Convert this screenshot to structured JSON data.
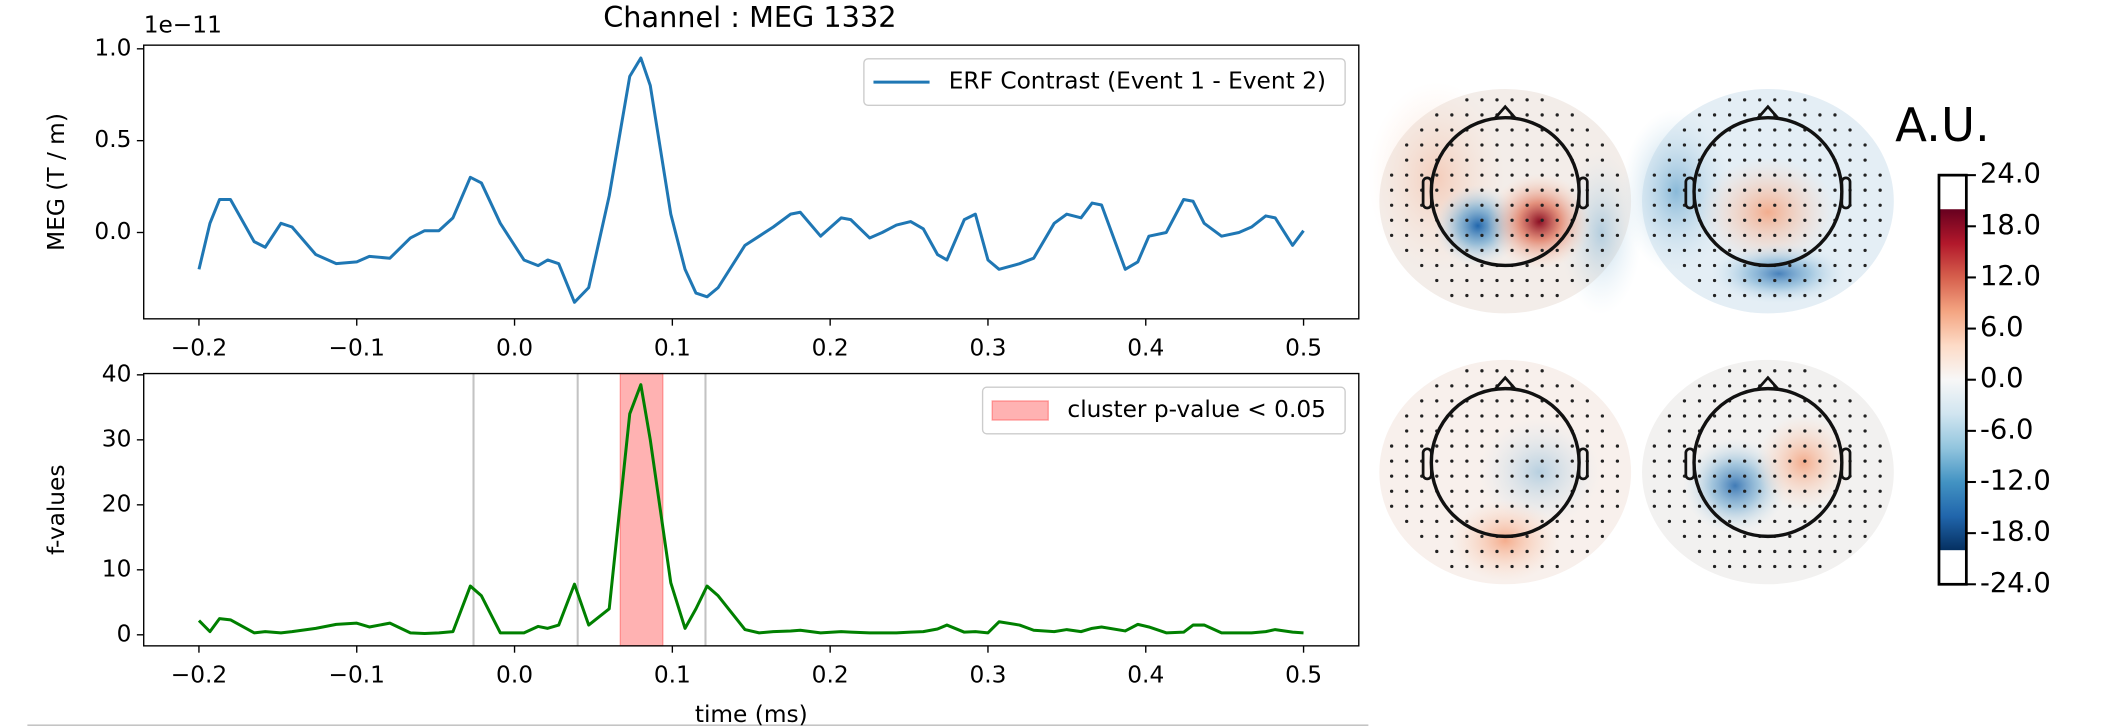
{
  "chart_data": [
    {
      "type": "line",
      "title": "Channel : MEG 1332",
      "offset_label": "1e−11",
      "ylabel": "MEG (T / m)",
      "x": [
        -0.2,
        -0.193,
        -0.187,
        -0.18,
        -0.165,
        -0.158,
        -0.148,
        -0.141,
        -0.126,
        -0.113,
        -0.1,
        -0.092,
        -0.079,
        -0.066,
        -0.057,
        -0.048,
        -0.039,
        -0.028,
        -0.021,
        -0.009,
        0.006,
        0.015,
        0.021,
        0.028,
        0.038,
        0.047,
        0.06,
        0.073,
        0.08,
        0.086,
        0.099,
        0.108,
        0.115,
        0.122,
        0.129,
        0.146,
        0.155,
        0.164,
        0.175,
        0.181,
        0.194,
        0.207,
        0.213,
        0.225,
        0.233,
        0.242,
        0.251,
        0.259,
        0.268,
        0.274,
        0.285,
        0.292,
        0.3,
        0.307,
        0.32,
        0.329,
        0.342,
        0.35,
        0.359,
        0.366,
        0.372,
        0.387,
        0.395,
        0.402,
        0.413,
        0.424,
        0.43,
        0.437,
        0.448,
        0.459,
        0.467,
        0.476,
        0.482,
        0.493,
        0.5
      ],
      "series": [
        {
          "name": "ERF Contrast (Event 1 - Event 2)",
          "color": "#1f77b4",
          "values": [
            -0.2,
            0.05,
            0.18,
            0.18,
            -0.05,
            -0.08,
            0.05,
            0.03,
            -0.12,
            -0.17,
            -0.16,
            -0.13,
            -0.14,
            -0.03,
            0.01,
            0.01,
            0.08,
            0.3,
            0.27,
            0.05,
            -0.15,
            -0.18,
            -0.15,
            -0.17,
            -0.38,
            -0.3,
            0.2,
            0.85,
            0.95,
            0.8,
            0.1,
            -0.2,
            -0.33,
            -0.35,
            -0.3,
            -0.07,
            -0.02,
            0.03,
            0.1,
            0.11,
            -0.02,
            0.08,
            0.07,
            -0.03,
            0,
            0.04,
            0.06,
            0.02,
            -0.12,
            -0.15,
            0.07,
            0.1,
            -0.15,
            -0.2,
            -0.17,
            -0.14,
            0.05,
            0.1,
            0.08,
            0.16,
            0.15,
            -0.2,
            -0.16,
            -0.02,
            0,
            0.18,
            0.17,
            0.05,
            -0.02,
            0,
            0.03,
            0.09,
            0.08,
            -0.07,
            0.01
          ]
        }
      ],
      "xlim": [
        -0.235,
        0.535
      ],
      "xticks": [
        {
          "value": -0.2,
          "label": "−0.2"
        },
        {
          "value": -0.1,
          "label": "−0.1"
        },
        {
          "value": 0,
          "label": "0.0"
        },
        0.1,
        0.2,
        0.3,
        0.4,
        0.5
      ],
      "ylim": [
        -0.47,
        1.02
      ],
      "yticks": [
        {
          "value": 0,
          "label": "0.0"
        },
        0.5,
        {
          "value": 1,
          "label": "1.0"
        }
      ],
      "legend": "upper right"
    },
    {
      "type": "line",
      "xlabel": "time (ms)",
      "ylabel": "f-values",
      "x": [
        -0.2,
        -0.193,
        -0.187,
        -0.18,
        -0.165,
        -0.158,
        -0.148,
        -0.141,
        -0.126,
        -0.113,
        -0.1,
        -0.092,
        -0.079,
        -0.066,
        -0.057,
        -0.048,
        -0.039,
        -0.028,
        -0.021,
        -0.009,
        0.006,
        0.015,
        0.021,
        0.028,
        0.038,
        0.047,
        0.06,
        0.073,
        0.08,
        0.086,
        0.099,
        0.108,
        0.115,
        0.122,
        0.129,
        0.146,
        0.155,
        0.164,
        0.175,
        0.181,
        0.194,
        0.207,
        0.213,
        0.225,
        0.233,
        0.242,
        0.251,
        0.259,
        0.268,
        0.274,
        0.285,
        0.292,
        0.3,
        0.307,
        0.32,
        0.329,
        0.342,
        0.35,
        0.359,
        0.366,
        0.372,
        0.387,
        0.395,
        0.402,
        0.413,
        0.424,
        0.43,
        0.437,
        0.448,
        0.459,
        0.467,
        0.476,
        0.482,
        0.493,
        0.5
      ],
      "series": [
        {
          "color": "#008000",
          "values": [
            2.2,
            0.5,
            2.5,
            2.3,
            0.3,
            0.5,
            0.3,
            0.5,
            1.0,
            1.6,
            1.8,
            1.2,
            1.8,
            0.3,
            0.2,
            0.3,
            0.5,
            7.5,
            6,
            0.3,
            0.3,
            1.3,
            1.0,
            1.5,
            7.8,
            1.5,
            4,
            34,
            38.5,
            30,
            8,
            1.0,
            4,
            7.5,
            6,
            0.8,
            0.3,
            0.5,
            0.6,
            0.7,
            0.3,
            0.5,
            0.4,
            0.3,
            0.3,
            0.3,
            0.4,
            0.5,
            0.9,
            1.5,
            0.4,
            0.5,
            0.3,
            2.0,
            1.5,
            0.7,
            0.5,
            0.8,
            0.5,
            1.0,
            1.2,
            0.6,
            1.6,
            1.2,
            0.3,
            0.4,
            1.5,
            1.5,
            0.3,
            0.3,
            0.3,
            0.5,
            0.8,
            0.4,
            0.3
          ]
        }
      ],
      "span": {
        "name": "cluster p-value < 0.05",
        "color": "#ff0000",
        "x": [
          0.067,
          0.094
        ]
      },
      "vlines": [
        -0.026,
        0.04,
        0.121
      ],
      "xlim": [
        -0.235,
        0.535
      ],
      "xticks": [
        {
          "value": -0.2,
          "label": "−0.2"
        },
        {
          "value": -0.1,
          "label": "−0.1"
        },
        {
          "value": 0,
          "label": "0.0"
        },
        0.1,
        0.2,
        0.3,
        0.4,
        0.5
      ],
      "ylim": [
        -1.7,
        40.2
      ],
      "yticks": [
        0,
        10,
        20,
        30,
        40
      ],
      "legend": "upper right"
    },
    {
      "type": "colorbar",
      "title": "A.U.",
      "colormap": "RdBu_r",
      "clim": [
        -20,
        20
      ],
      "ylim": [
        -24,
        24
      ],
      "yticks": [
        {
          "value": 24,
          "label": "24.0"
        },
        {
          "value": 18,
          "label": "18.0"
        },
        {
          "value": 12,
          "label": "12.0"
        },
        {
          "value": 6,
          "label": "6.0"
        },
        {
          "value": 0,
          "label": "0.0"
        },
        {
          "value": -6,
          "label": "-6.0"
        },
        {
          "value": -12,
          "label": "-12.0"
        },
        {
          "value": -18,
          "label": "-18.0"
        },
        {
          "value": -24,
          "label": "-24.0"
        }
      ]
    }
  ]
}
